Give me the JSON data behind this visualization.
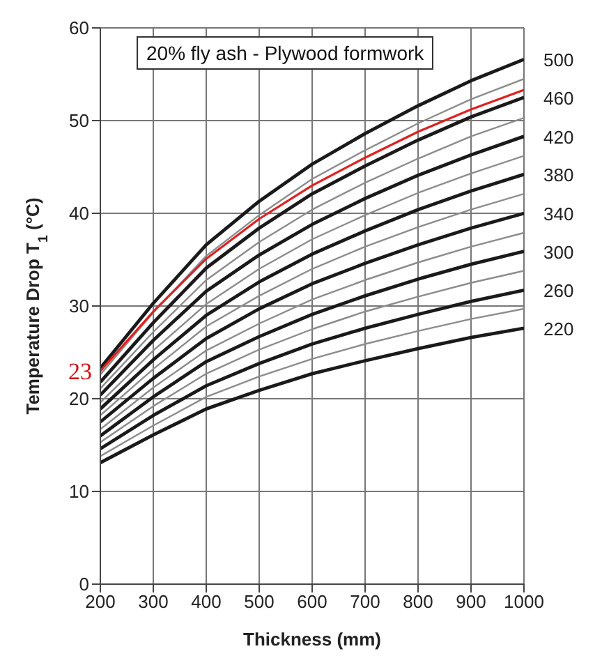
{
  "chart_data": {
    "type": "line",
    "xlabel": "Thickness (mm)",
    "ylabel": "Temperature Drop T$_{1}$ (°C)",
    "annotations": [
      "20% fly ash - Plywood formwork",
      {
        "text": "23",
        "x": 200,
        "y": 23
      }
    ],
    "x": [
      200,
      300,
      400,
      500,
      600,
      700,
      800,
      900,
      1000
    ],
    "xlim": [
      200,
      1000
    ],
    "xticks": [
      200,
      300,
      400,
      500,
      600,
      700,
      800,
      900,
      1000
    ],
    "ylim": [
      0,
      60
    ],
    "yticks": [
      0,
      10,
      20,
      30,
      40,
      50,
      60
    ],
    "grid": true,
    "marker": "none",
    "line_style": "solid",
    "series": [
      {
        "name": "220",
        "color": "#1a1a1a",
        "values": [
          13.1,
          16.1,
          18.9,
          20.9,
          22.7,
          24.1,
          25.4,
          26.6,
          27.6
        ]
      },
      {
        "color": "#8c8c8c",
        "values": [
          13.8,
          17.1,
          20.2,
          22.4,
          24.3,
          25.9,
          27.3,
          28.6,
          29.7
        ]
      },
      {
        "name": "260",
        "color": "#1a1a1a",
        "values": [
          14.6,
          18.2,
          21.4,
          23.8,
          25.9,
          27.6,
          29.1,
          30.5,
          31.7
        ]
      },
      {
        "color": "#8c8c8c",
        "values": [
          15.3,
          19.2,
          22.7,
          25.3,
          27.5,
          29.4,
          31.0,
          32.5,
          33.8
        ]
      },
      {
        "name": "300",
        "color": "#1a1a1a",
        "values": [
          16.0,
          20.2,
          24.0,
          26.7,
          29.1,
          31.1,
          32.9,
          34.5,
          35.9
        ]
      },
      {
        "color": "#8c8c8c",
        "values": [
          16.7,
          21.2,
          25.2,
          28.1,
          30.7,
          32.8,
          34.7,
          36.4,
          37.9
        ]
      },
      {
        "name": "340",
        "color": "#1a1a1a",
        "values": [
          17.5,
          22.2,
          26.5,
          29.7,
          32.4,
          34.6,
          36.6,
          38.4,
          40.0
        ]
      },
      {
        "color": "#8c8c8c",
        "values": [
          18.2,
          23.2,
          27.8,
          31.1,
          34.0,
          36.4,
          38.5,
          40.4,
          42.1
        ]
      },
      {
        "name": "380",
        "color": "#1a1a1a",
        "values": [
          18.9,
          24.2,
          29.0,
          32.6,
          35.6,
          38.1,
          40.4,
          42.4,
          44.2
        ]
      },
      {
        "color": "#8c8c8c",
        "values": [
          19.6,
          25.2,
          30.2,
          34.0,
          37.2,
          39.8,
          42.2,
          44.3,
          46.2
        ]
      },
      {
        "name": "420",
        "color": "#1a1a1a",
        "values": [
          20.4,
          26.3,
          31.6,
          35.5,
          38.8,
          41.6,
          44.1,
          46.3,
          48.3
        ]
      },
      {
        "color": "#8c8c8c",
        "values": [
          21.1,
          27.2,
          32.8,
          36.9,
          40.4,
          43.3,
          45.9,
          48.3,
          50.3
        ]
      },
      {
        "name": "460",
        "color": "#1a1a1a",
        "values": [
          21.8,
          28.2,
          34.1,
          38.4,
          42.1,
          45.1,
          47.9,
          50.4,
          52.5
        ]
      },
      {
        "color": "#8c8c8c",
        "values": [
          22.6,
          29.3,
          35.4,
          39.8,
          43.7,
          46.8,
          49.7,
          52.3,
          54.5
        ]
      },
      {
        "name": "500",
        "color": "#1a1a1a",
        "values": [
          23.3,
          30.3,
          36.6,
          41.3,
          45.3,
          48.6,
          51.6,
          54.3,
          56.6
        ]
      },
      {
        "color": "#e02020",
        "values": [
          23.0,
          29.4,
          35.1,
          39.4,
          43.0,
          46.0,
          48.8,
          51.2,
          53.3
        ]
      }
    ]
  }
}
